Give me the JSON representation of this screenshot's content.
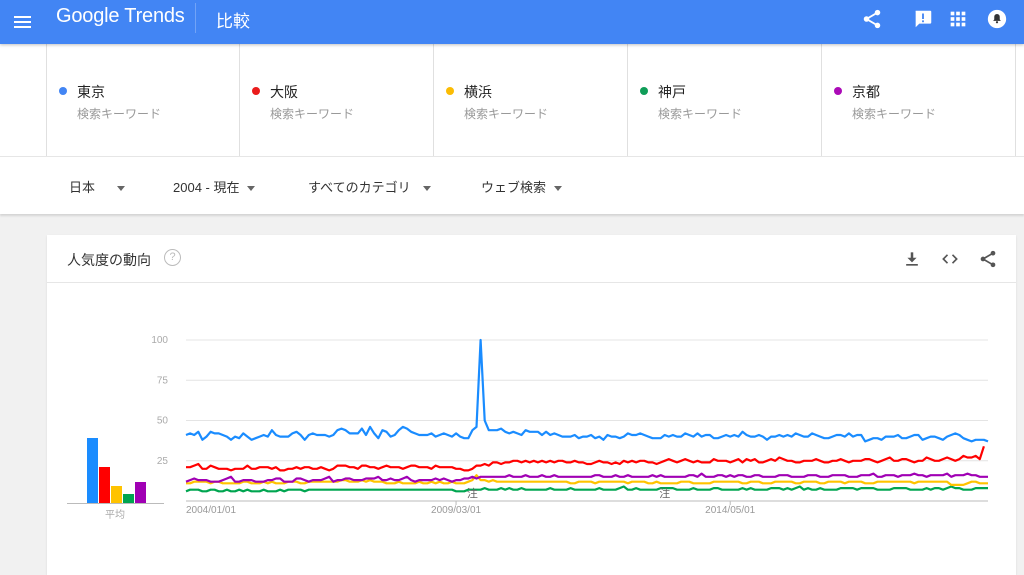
{
  "header": {
    "menu_icon": "hamburger-menu-icon",
    "logo_google": "Google",
    "logo_trends": "Trends",
    "title": "比較",
    "icons": [
      "share-icon",
      "feedback-icon",
      "apps-grid-icon",
      "notifications-icon"
    ],
    "bg_color": "#4285f4"
  },
  "terms": [
    {
      "name": "東京",
      "sub": "検索キーワード",
      "color": "#4285f4"
    },
    {
      "name": "大阪",
      "sub": "検索キーワード",
      "color": "#ea1c1c"
    },
    {
      "name": "横浜",
      "sub": "検索キーワード",
      "color": "#fbbc04"
    },
    {
      "name": "神戸",
      "sub": "検索キーワード",
      "color": "#0f9d58"
    },
    {
      "name": "京都",
      "sub": "検索キーワード",
      "color": "#ab0ab7"
    }
  ],
  "filters": [
    {
      "label": "日本"
    },
    {
      "label": "2004 - 現在"
    },
    {
      "label": "すべてのカテゴリ"
    },
    {
      "label": "ウェブ検索"
    }
  ],
  "card": {
    "title": "人気度の動向",
    "help_glyph": "?",
    "icons": [
      "download-icon",
      "embed-code-icon",
      "share-icon"
    ],
    "avg_label": "平均"
  },
  "chart_data": {
    "type": "line",
    "title": "人気度の動向",
    "xlabel": "",
    "ylabel": "",
    "ylim": [
      0,
      100
    ],
    "yticks": [
      25,
      50,
      75,
      100
    ],
    "xticks": [
      "2004/01/01",
      "2009/03/01",
      "2014/05/01"
    ],
    "annotations": [
      {
        "label": "注",
        "x_index": 70
      },
      {
        "label": "注",
        "x_index": 117
      }
    ],
    "grid": true,
    "averages": [
      {
        "name": "東京",
        "value": 41,
        "color": "#1a8cff"
      },
      {
        "name": "大阪",
        "value": 23,
        "color": "#ff0000"
      },
      {
        "name": "横浜",
        "value": 11,
        "color": "#ffc300"
      },
      {
        "name": "神戸",
        "value": 6,
        "color": "#00a550"
      },
      {
        "name": "京都",
        "value": 13,
        "color": "#a000b4"
      }
    ],
    "series": [
      {
        "name": "東京",
        "color": "#1a8cff",
        "values": [
          41,
          42,
          41,
          43,
          38,
          40,
          43,
          42,
          42,
          41,
          40,
          38,
          40,
          39,
          42,
          40,
          38,
          39,
          40,
          41,
          40,
          44,
          41,
          40,
          40,
          40,
          42,
          43,
          41,
          38,
          41,
          42,
          41,
          41,
          41,
          40,
          41,
          44,
          45,
          44,
          42,
          42,
          42,
          45,
          41,
          46,
          42,
          39,
          44,
          43,
          40,
          41,
          44,
          46,
          45,
          43,
          42,
          41,
          41,
          41,
          42,
          40,
          41,
          42,
          41,
          40,
          42,
          40,
          39,
          39,
          44,
          46,
          100,
          50,
          44,
          44,
          44,
          45,
          43,
          42,
          43,
          42,
          41,
          44,
          43,
          43,
          43,
          41,
          43,
          41,
          42,
          41,
          40,
          40,
          40,
          41,
          39,
          40,
          40,
          41,
          39,
          40,
          38,
          41,
          40,
          40,
          39,
          40,
          42,
          41,
          41,
          42,
          41,
          40,
          39,
          39,
          39,
          41,
          40,
          41,
          40,
          40,
          42,
          41,
          40,
          42,
          40,
          41,
          41,
          39,
          39,
          40,
          41,
          40,
          41,
          40,
          43,
          41,
          40,
          40,
          41,
          40,
          38,
          40,
          40,
          41,
          40,
          41,
          40,
          42,
          41,
          40,
          40,
          42,
          41,
          40,
          39,
          39,
          40,
          41,
          41,
          40,
          42,
          40,
          41,
          41,
          37,
          38,
          39,
          39,
          38,
          40,
          40,
          40,
          41,
          39,
          39,
          40,
          41,
          41,
          38,
          39,
          40,
          40,
          39,
          38,
          40,
          41,
          42,
          41,
          39,
          38,
          37,
          38,
          38,
          38,
          37
        ]
      },
      {
        "name": "大阪",
        "color": "#ff0000",
        "values": [
          21,
          21,
          22,
          23,
          20,
          20,
          22,
          21,
          20,
          20,
          20,
          19,
          20,
          20,
          20,
          22,
          20,
          20,
          21,
          21,
          21,
          20,
          21,
          19,
          19,
          20,
          20,
          21,
          20,
          21,
          21,
          20,
          20,
          21,
          20,
          19,
          20,
          22,
          22,
          22,
          21,
          21,
          20,
          22,
          22,
          21,
          21,
          20,
          21,
          22,
          21,
          21,
          21,
          20,
          21,
          22,
          22,
          21,
          21,
          21,
          20,
          22,
          21,
          21,
          21,
          21,
          20,
          20,
          19,
          19,
          20,
          22,
          22,
          23,
          22,
          24,
          24,
          23,
          24,
          24,
          25,
          25,
          24,
          25,
          24,
          25,
          24,
          25,
          24,
          25,
          24,
          25,
          25,
          24,
          24,
          25,
          24,
          24,
          23,
          23,
          24,
          25,
          24,
          24,
          23,
          24,
          23,
          25,
          24,
          25,
          24,
          25,
          25,
          24,
          24,
          23,
          24,
          25,
          26,
          25,
          24,
          25,
          26,
          25,
          24,
          25,
          24,
          24,
          24,
          26,
          25,
          25,
          25,
          24,
          25,
          26,
          24,
          26,
          25,
          26,
          24,
          24,
          25,
          26,
          25,
          27,
          26,
          25,
          25,
          24,
          24,
          25,
          25,
          25,
          26,
          25,
          24,
          24,
          25,
          25,
          26,
          25,
          24,
          25,
          25,
          25,
          26,
          26,
          25,
          24,
          25,
          26,
          27,
          25,
          25,
          26,
          26,
          25,
          24,
          25,
          25,
          27,
          26,
          25,
          25,
          26,
          27,
          26,
          25,
          26,
          28,
          27,
          27,
          28,
          26,
          34
        ]
      },
      {
        "name": "横浜",
        "color": "#ffc300",
        "values": [
          11,
          11,
          12,
          12,
          12,
          12,
          11,
          12,
          12,
          11,
          11,
          11,
          11,
          11,
          12,
          12,
          11,
          11,
          11,
          12,
          11,
          12,
          11,
          11,
          11,
          12,
          12,
          12,
          11,
          11,
          12,
          12,
          12,
          12,
          12,
          12,
          12,
          12,
          13,
          13,
          12,
          12,
          12,
          13,
          12,
          13,
          12,
          12,
          12,
          11,
          11,
          11,
          12,
          11,
          11,
          11,
          11,
          12,
          11,
          11,
          12,
          11,
          12,
          11,
          11,
          12,
          11,
          11,
          11,
          12,
          13,
          16,
          13,
          13,
          12,
          13,
          12,
          12,
          12,
          12,
          12,
          12,
          12,
          12,
          12,
          12,
          12,
          12,
          12,
          12,
          12,
          12,
          12,
          12,
          11,
          11,
          12,
          12,
          12,
          12,
          11,
          12,
          12,
          12,
          12,
          12,
          12,
          12,
          11,
          12,
          12,
          12,
          12,
          11,
          11,
          12,
          11,
          11,
          11,
          11,
          11,
          12,
          12,
          12,
          11,
          11,
          11,
          11,
          11,
          12,
          12,
          12,
          12,
          12,
          12,
          12,
          11,
          11,
          12,
          12,
          12,
          11,
          11,
          11,
          12,
          12,
          12,
          12,
          12,
          11,
          11,
          12,
          12,
          12,
          12,
          11,
          11,
          12,
          12,
          12,
          12,
          11,
          12,
          12,
          12,
          12,
          11,
          11,
          11,
          12,
          12,
          12,
          12,
          12,
          12,
          12,
          12,
          12,
          11,
          12,
          12,
          12,
          12,
          12,
          12,
          12,
          12,
          10,
          10,
          10,
          10,
          11,
          12,
          12,
          11,
          11,
          11
        ]
      },
      {
        "name": "神戸",
        "color": "#00a550",
        "values": [
          6,
          7,
          7,
          7,
          6,
          6,
          7,
          7,
          6,
          6,
          7,
          6,
          6,
          7,
          6,
          7,
          6,
          6,
          6,
          7,
          6,
          6,
          6,
          7,
          6,
          7,
          7,
          7,
          7,
          6,
          7,
          7,
          7,
          7,
          7,
          7,
          7,
          7,
          7,
          7,
          7,
          7,
          7,
          7,
          7,
          7,
          7,
          7,
          7,
          7,
          7,
          7,
          7,
          7,
          7,
          7,
          7,
          7,
          7,
          7,
          7,
          7,
          7,
          7,
          7,
          7,
          6,
          6,
          6,
          7,
          7,
          7,
          7,
          8,
          7,
          7,
          7,
          8,
          7,
          8,
          7,
          7,
          8,
          7,
          7,
          7,
          7,
          7,
          7,
          8,
          7,
          7,
          7,
          7,
          8,
          7,
          7,
          7,
          7,
          7,
          7,
          8,
          7,
          7,
          7,
          7,
          8,
          9,
          7,
          7,
          8,
          7,
          7,
          7,
          7,
          7,
          8,
          8,
          8,
          8,
          7,
          7,
          7,
          7,
          8,
          7,
          7,
          7,
          7,
          8,
          8,
          7,
          7,
          7,
          7,
          7,
          8,
          7,
          8,
          7,
          7,
          7,
          7,
          8,
          8,
          8,
          7,
          8,
          7,
          8,
          9,
          7,
          8,
          7,
          7,
          8,
          7,
          7,
          7,
          7,
          8,
          8,
          8,
          8,
          7,
          8,
          8,
          8,
          8,
          7,
          7,
          7,
          7,
          8,
          8,
          8,
          8,
          7,
          7,
          7,
          7,
          8,
          7,
          8,
          8,
          7,
          8,
          9,
          8,
          8,
          7,
          7,
          7,
          8,
          8,
          8,
          8
        ]
      },
      {
        "name": "京都",
        "color": "#a000b4",
        "values": [
          12,
          13,
          14,
          13,
          13,
          13,
          12,
          12,
          12,
          13,
          14,
          15,
          12,
          12,
          13,
          13,
          13,
          12,
          12,
          12,
          13,
          13,
          14,
          14,
          12,
          12,
          12,
          14,
          14,
          13,
          12,
          13,
          13,
          13,
          14,
          15,
          12,
          13,
          13,
          14,
          14,
          13,
          13,
          13,
          14,
          14,
          14,
          15,
          13,
          13,
          14,
          13,
          13,
          14,
          15,
          13,
          12,
          13,
          13,
          13,
          13,
          14,
          13,
          14,
          13,
          12,
          13,
          13,
          14,
          14,
          15,
          14,
          15,
          15,
          15,
          15,
          15,
          15,
          15,
          16,
          15,
          15,
          15,
          16,
          15,
          15,
          15,
          16,
          15,
          15,
          16,
          15,
          15,
          15,
          15,
          15,
          15,
          15,
          15,
          15,
          16,
          16,
          15,
          15,
          15,
          16,
          15,
          15,
          16,
          15,
          15,
          15,
          15,
          15,
          16,
          15,
          16,
          15,
          15,
          15,
          15,
          15,
          15,
          16,
          16,
          15,
          17,
          15,
          15,
          15,
          16,
          16,
          15,
          16,
          15,
          16,
          16,
          15,
          15,
          16,
          16,
          15,
          15,
          15,
          15,
          16,
          16,
          16,
          15,
          15,
          15,
          15,
          16,
          16,
          16,
          15,
          15,
          15,
          16,
          16,
          16,
          16,
          15,
          15,
          15,
          16,
          16,
          16,
          17,
          15,
          15,
          16,
          16,
          16,
          15,
          16,
          16,
          16,
          17,
          16,
          16,
          15,
          16,
          16,
          16,
          16,
          17,
          15,
          16,
          16,
          16,
          17,
          16,
          16,
          15,
          15,
          15
        ]
      }
    ]
  }
}
